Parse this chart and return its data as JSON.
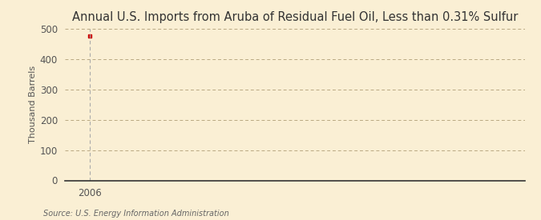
{
  "title": "Annual U.S. Imports from Aruba of Residual Fuel Oil, Less than 0.31% Sulfur",
  "ylabel": "Thousand Barrels",
  "source_text": "Source: U.S. Energy Information Administration",
  "x_data": [
    2006
  ],
  "y_data": [
    476
  ],
  "xlim": [
    2005.4,
    2016.5
  ],
  "ylim": [
    0,
    500
  ],
  "yticks": [
    0,
    100,
    200,
    300,
    400,
    500
  ],
  "xticks": [
    2006
  ],
  "background_color": "#faefd4",
  "plot_bg_color": "#faefd4",
  "grid_color": "#b8a882",
  "vline_color": "#aaaaaa",
  "marker_color": "#cc0000",
  "title_fontsize": 10.5,
  "label_fontsize": 8,
  "tick_fontsize": 8.5,
  "source_fontsize": 7
}
